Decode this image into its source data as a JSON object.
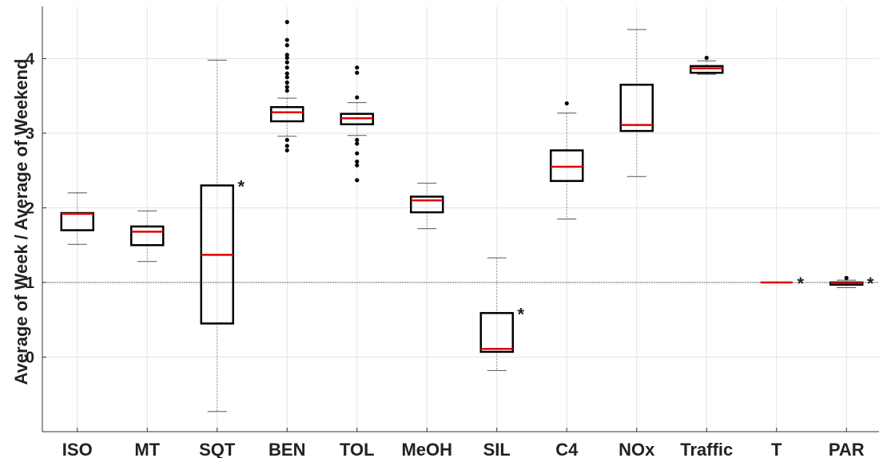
{
  "chart_data": {
    "type": "box",
    "title": "",
    "xlabel": "",
    "ylabel": "Average of Week  / Average of Weekend",
    "ylim": [
      -1.0,
      4.7
    ],
    "yticks": [
      0,
      1,
      2,
      3,
      4
    ],
    "grid": true,
    "reference_line": 1,
    "colors": {
      "box": "#000000",
      "median": "#e00000",
      "whisker": "#999999",
      "grid": "#e3e3e3",
      "reference": "#8a8a8a"
    },
    "categories": [
      "ISO",
      "MT",
      "SQT",
      "BEN",
      "TOL",
      "MeOH",
      "SIL",
      "C4",
      "NOx",
      "Traffic",
      "T",
      "PAR"
    ],
    "boxes": [
      {
        "q1": 1.7,
        "median": 1.92,
        "q3": 1.93,
        "lower_whisker": 1.51,
        "upper_whisker": 2.2,
        "outliers": [],
        "mark": ""
      },
      {
        "q1": 1.5,
        "median": 1.68,
        "q3": 1.75,
        "lower_whisker": 1.28,
        "upper_whisker": 1.96,
        "outliers": [],
        "mark": ""
      },
      {
        "q1": 0.45,
        "median": 1.37,
        "q3": 2.3,
        "lower_whisker": -0.73,
        "upper_whisker": 3.98,
        "outliers": [],
        "mark": "*"
      },
      {
        "q1": 3.16,
        "median": 3.28,
        "q3": 3.35,
        "lower_whisker": 2.96,
        "upper_whisker": 3.47,
        "outliers": [
          2.77,
          2.83,
          2.91,
          3.57,
          3.62,
          3.68,
          3.75,
          3.8,
          3.88,
          3.95,
          4.01,
          4.05,
          4.18,
          4.25,
          4.49
        ],
        "mark": ""
      },
      {
        "q1": 3.12,
        "median": 3.2,
        "q3": 3.26,
        "lower_whisker": 2.97,
        "upper_whisker": 3.41,
        "outliers": [
          2.37,
          2.57,
          2.62,
          2.73,
          2.86,
          2.91,
          3.48,
          3.81,
          3.88
        ],
        "mark": ""
      },
      {
        "q1": 1.94,
        "median": 2.1,
        "q3": 2.15,
        "lower_whisker": 1.72,
        "upper_whisker": 2.33,
        "outliers": [],
        "mark": ""
      },
      {
        "q1": 0.07,
        "median": 0.11,
        "q3": 0.59,
        "lower_whisker": -0.18,
        "upper_whisker": 1.33,
        "outliers": [],
        "mark": "*"
      },
      {
        "q1": 2.36,
        "median": 2.55,
        "q3": 2.77,
        "lower_whisker": 1.85,
        "upper_whisker": 3.27,
        "outliers": [
          3.4
        ],
        "mark": ""
      },
      {
        "q1": 3.03,
        "median": 3.11,
        "q3": 3.65,
        "lower_whisker": 2.42,
        "upper_whisker": 4.39,
        "outliers": [],
        "mark": ""
      },
      {
        "q1": 3.81,
        "median": 3.87,
        "q3": 3.9,
        "lower_whisker": 3.79,
        "upper_whisker": 3.97,
        "outliers": [
          4.01
        ],
        "mark": ""
      },
      {
        "q1": 1.0,
        "median": 1.0,
        "q3": 1.0,
        "lower_whisker": 1.0,
        "upper_whisker": 1.0,
        "outliers": [],
        "mark": "*"
      },
      {
        "q1": 0.97,
        "median": 0.99,
        "q3": 1.0,
        "lower_whisker": 0.93,
        "upper_whisker": 1.03,
        "outliers": [
          1.06
        ],
        "mark": "*"
      }
    ]
  }
}
